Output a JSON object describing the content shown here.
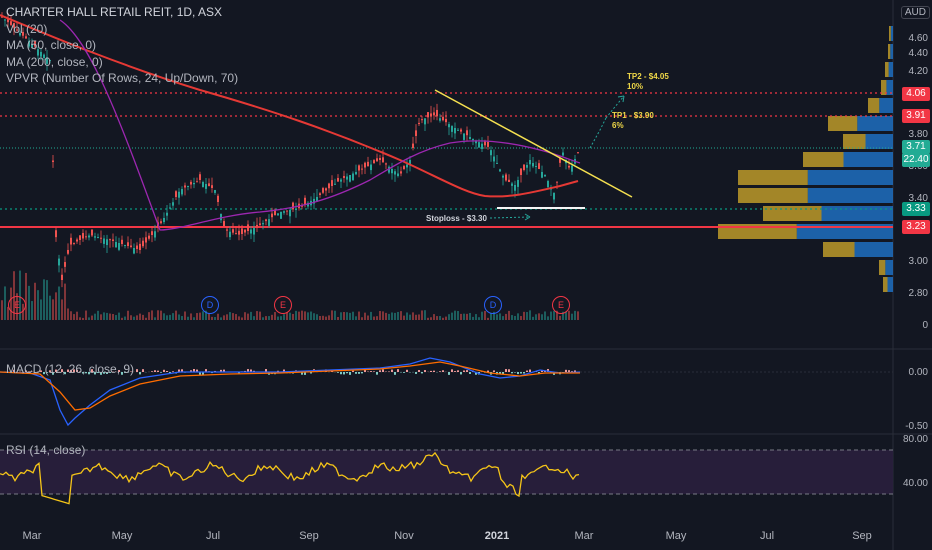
{
  "symbol": {
    "title": "CHARTER HALL RETAIL REIT, 1D, ASX"
  },
  "indicators": [
    {
      "label": "Vol (20)"
    },
    {
      "label": "MA (50, close, 0)"
    },
    {
      "label": "MA (200, close, 0)"
    },
    {
      "label": "VPVR (Number Of Rows, 24, Up/Down, 70)"
    }
  ],
  "currency": "AUD",
  "price_axis": [
    "4.60",
    "4.40",
    "4.20",
    "3.80",
    "3.60",
    "3.40",
    "3.00",
    "2.80"
  ],
  "price_tags": [
    {
      "value": "4.06",
      "color": "#f23645"
    },
    {
      "value": "3.91",
      "color": "#f23645"
    },
    {
      "value": "3.71",
      "color": "#22ab94"
    },
    {
      "value": "22.40",
      "color": "#22ab94"
    },
    {
      "value": "3.33",
      "color": "#089981"
    },
    {
      "value": "3.23",
      "color": "#f23645"
    }
  ],
  "volume_axis": "0",
  "macd": {
    "label": "MACD (12, 26, close, 9)",
    "axis": [
      "0.00",
      "-0.50"
    ]
  },
  "rsi": {
    "label": "RSI (14, close)",
    "axis": [
      "80.00",
      "40.00"
    ]
  },
  "time_axis": [
    {
      "label": "Mar",
      "bold": false
    },
    {
      "label": "May",
      "bold": false
    },
    {
      "label": "Jul",
      "bold": false
    },
    {
      "label": "Sep",
      "bold": false
    },
    {
      "label": "Nov",
      "bold": false
    },
    {
      "label": "2021",
      "bold": true
    },
    {
      "label": "Mar",
      "bold": false
    },
    {
      "label": "May",
      "bold": false
    },
    {
      "label": "Jul",
      "bold": false
    },
    {
      "label": "Sep",
      "bold": false
    }
  ],
  "annotations": {
    "tp2": "TP2 - $4.05",
    "tp2_pct": "10%",
    "tp1": "TP1 - $3.90",
    "tp1_pct": "6%",
    "stoploss": "Stoploss - $3.30"
  },
  "events": [
    "E",
    "D",
    "E",
    "D",
    "E"
  ],
  "colors": {
    "up": "#26a69a",
    "down": "#ef5350",
    "ma50": "#9c27b0",
    "ma200": "#e53935",
    "trend": "#f5e050",
    "bg": "#131722"
  }
}
